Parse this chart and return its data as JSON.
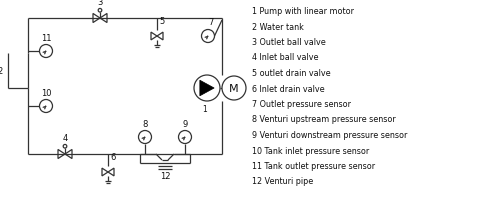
{
  "legend_items": [
    "1 Pump with linear motor",
    "2 Water tank",
    "3 Outlet ball valve",
    "4 Inlet ball valve",
    "5 outlet drain valve",
    "6 Inlet drain valve",
    "7 Outlet pressure sensor",
    "8 Venturi upstream pressure sensor",
    "9 Venturi downstream pressure sensor",
    "10 Tank inlet pressure sensor",
    "11 Tank outlet pressure sensor",
    "12 Venturi pipe"
  ],
  "line_color": "#333333",
  "bg_color": "#ffffff",
  "text_color": "#111111",
  "legend_fontsize": 5.8,
  "label_fontsize": 6.0
}
